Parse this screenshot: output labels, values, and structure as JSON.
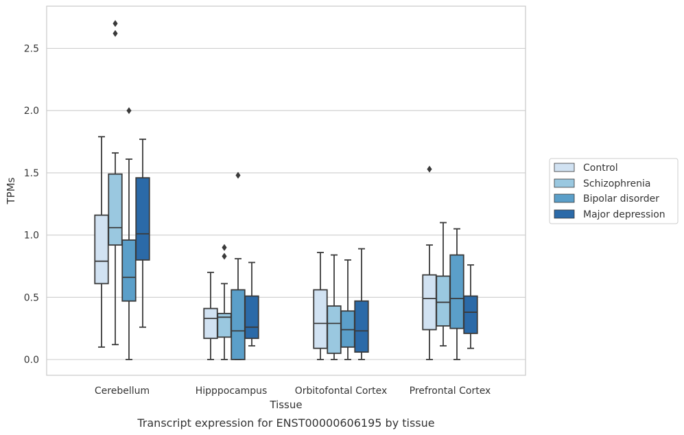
{
  "caption": "Transcript expression for ENST00000606195 by tissue",
  "chart_data": {
    "type": "box",
    "xlabel": "Tissue",
    "ylabel": "TPMs",
    "ylim": [
      -0.13,
      2.86
    ],
    "yticks": [
      "0.0",
      "0.5",
      "1.0",
      "1.5",
      "2.0",
      "2.5"
    ],
    "ytick_values": [
      0.0,
      0.5,
      1.0,
      1.5,
      2.0,
      2.5
    ],
    "grid": "horizontal",
    "legend_position": "right",
    "categories": [
      "Cerebellum",
      "Hipppocampus",
      "Orbitofontal Cortex",
      "Prefrontal Cortex"
    ],
    "series": [
      {
        "name": "Control",
        "color": "#d1e2f2",
        "boxes": [
          {
            "whislo": 0.1,
            "q1": 0.61,
            "med": 0.79,
            "q3": 1.16,
            "whishi": 1.79,
            "fliers": []
          },
          {
            "whislo": 0.0,
            "q1": 0.17,
            "med": 0.33,
            "q3": 0.41,
            "whishi": 0.7,
            "fliers": []
          },
          {
            "whislo": 0.0,
            "q1": 0.09,
            "med": 0.29,
            "q3": 0.56,
            "whishi": 0.86,
            "fliers": []
          },
          {
            "whislo": 0.0,
            "q1": 0.24,
            "med": 0.49,
            "q3": 0.68,
            "whishi": 0.92,
            "fliers": [
              1.53
            ]
          }
        ]
      },
      {
        "name": "Schizophrenia",
        "color": "#9ac8e0",
        "boxes": [
          {
            "whislo": 0.12,
            "q1": 0.92,
            "med": 1.06,
            "q3": 1.49,
            "whishi": 1.66,
            "fliers": [
              2.62,
              2.7
            ]
          },
          {
            "whislo": 0.0,
            "q1": 0.18,
            "med": 0.34,
            "q3": 0.37,
            "whishi": 0.61,
            "fliers": [
              0.83,
              0.9
            ]
          },
          {
            "whislo": 0.0,
            "q1": 0.05,
            "med": 0.29,
            "q3": 0.43,
            "whishi": 0.84,
            "fliers": []
          },
          {
            "whislo": 0.11,
            "q1": 0.27,
            "med": 0.46,
            "q3": 0.67,
            "whishi": 1.1,
            "fliers": []
          }
        ]
      },
      {
        "name": "Bipolar disorder",
        "color": "#5b9fc9",
        "boxes": [
          {
            "whislo": 0.0,
            "q1": 0.47,
            "med": 0.66,
            "q3": 0.96,
            "whishi": 1.61,
            "fliers": [
              2.0
            ]
          },
          {
            "whislo": 0.0,
            "q1": 0.0,
            "med": 0.23,
            "q3": 0.56,
            "whishi": 0.81,
            "fliers": [
              1.48
            ]
          },
          {
            "whislo": 0.0,
            "q1": 0.1,
            "med": 0.24,
            "q3": 0.39,
            "whishi": 0.8,
            "fliers": []
          },
          {
            "whislo": 0.0,
            "q1": 0.25,
            "med": 0.49,
            "q3": 0.84,
            "whishi": 1.05,
            "fliers": []
          }
        ]
      },
      {
        "name": "Major depression",
        "color": "#2b6aa8",
        "boxes": [
          {
            "whislo": 0.26,
            "q1": 0.8,
            "med": 1.01,
            "q3": 1.46,
            "whishi": 1.77,
            "fliers": []
          },
          {
            "whislo": 0.11,
            "q1": 0.17,
            "med": 0.26,
            "q3": 0.51,
            "whishi": 0.78,
            "fliers": []
          },
          {
            "whislo": 0.0,
            "q1": 0.06,
            "med": 0.23,
            "q3": 0.47,
            "whishi": 0.89,
            "fliers": []
          },
          {
            "whislo": 0.09,
            "q1": 0.21,
            "med": 0.38,
            "q3": 0.51,
            "whishi": 0.76,
            "fliers": []
          }
        ]
      }
    ]
  }
}
